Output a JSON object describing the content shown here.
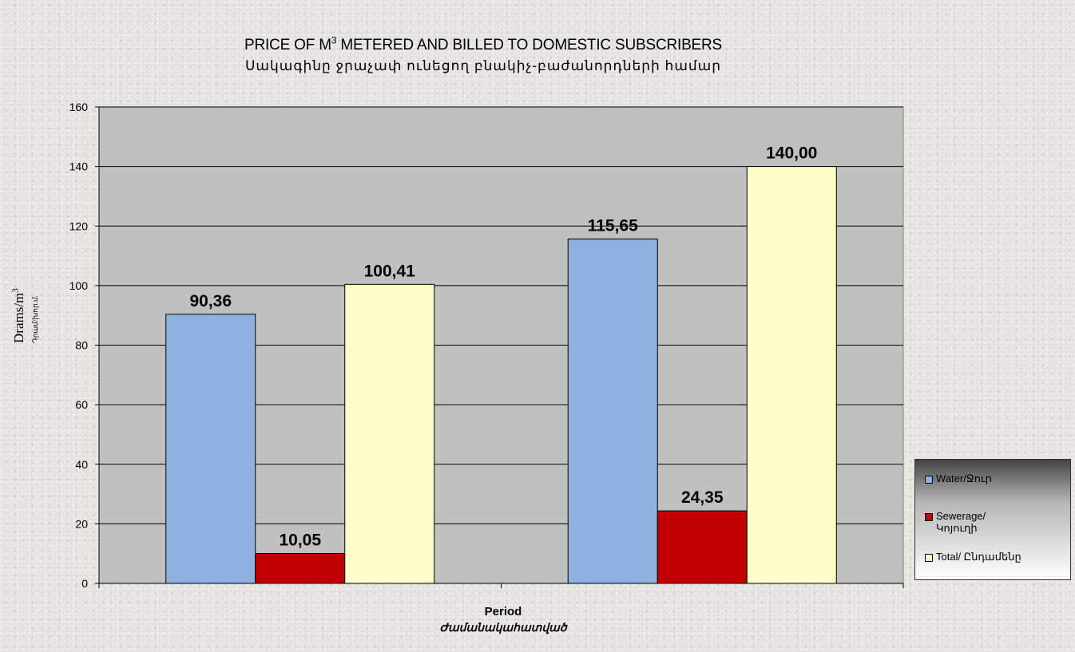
{
  "chart_data": {
    "type": "bar",
    "title_main": "PRICE OF M",
    "title_sup": "3",
    "title_rest": " METERED  AND BILLED TO DOMESTIC SUBSCRIBERS",
    "subtitle": "Սակագինը ջրաչափ ունեցող բնակիչ-բաժանորդների համար",
    "xlabel": "Period",
    "xlabel_secondary": "Ժամանակահատված",
    "ylabel_main": "Drams/m",
    "ylabel_sup": "3",
    "ylabel_secondary": "Դրամ/խոր.մ.",
    "ylim": [
      0,
      160
    ],
    "yticks": [
      0,
      20,
      40,
      60,
      80,
      100,
      120,
      140,
      160
    ],
    "yticks_labels": [
      "0",
      "20",
      "40",
      "60",
      "80",
      "100",
      "120",
      "140",
      "160"
    ],
    "grid": true,
    "legend_position": "right",
    "groups": 2,
    "series": [
      {
        "name": "Water/Ջուր",
        "values": [
          90.36,
          115.65
        ],
        "labels": [
          "90,36",
          "115,65"
        ],
        "color": "#8eb1df"
      },
      {
        "name_line1": "Sewerage/",
        "name_line2": "Կոյուղի",
        "values": [
          10.05,
          24.35
        ],
        "labels": [
          "10,05",
          "24,35"
        ],
        "color": "#c00000"
      },
      {
        "name": "Total/ Ընդամենը",
        "values": [
          100.41,
          140.0
        ],
        "labels": [
          "100,41",
          "140,00"
        ],
        "color": "#fffdc8"
      }
    ],
    "plot_background": "#c0c0c0"
  }
}
